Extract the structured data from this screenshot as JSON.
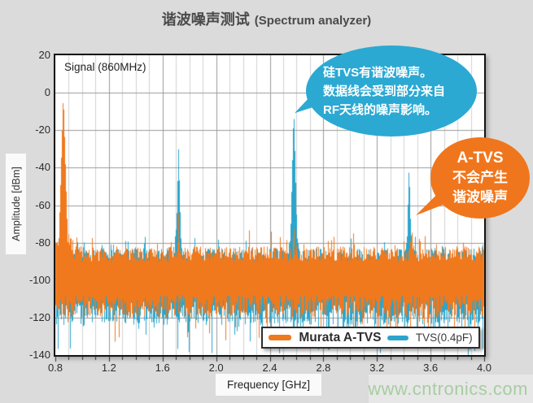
{
  "title": {
    "zh": "谐波噪声测试",
    "en": "(Spectrum analyzer)"
  },
  "signal_label": "Signal (860MHz)",
  "watermark": "www.cntronics.com",
  "axes": {
    "x": {
      "label": "Frequency [GHz]",
      "min": 0.8,
      "max": 4.0,
      "major_ticks": [
        "0.8",
        "1.2",
        "1.6",
        "2.0",
        "2.4",
        "2.8",
        "3.2",
        "3.6",
        "4.0"
      ],
      "minor_step_ghz": 0.1
    },
    "y": {
      "label": "Amplitude [dBm]",
      "min": -140,
      "max": 20,
      "ticks": [
        "20",
        "0",
        "-20",
        "-40",
        "-60",
        "-80",
        "-100",
        "-120",
        "-140"
      ]
    }
  },
  "legend": [
    {
      "name": "Murata A-TVS",
      "color": "#f0791e"
    },
    {
      "name": "TVS(0.4pF)",
      "color": "#2aa5cc"
    }
  ],
  "callouts": {
    "blue": {
      "color": "#2ba9d2",
      "lines": [
        "硅TVS有谐波噪声。",
        "数据线会受到部分来自",
        "RF天线的噪声影响。"
      ]
    },
    "orange": {
      "color": "#f0761d",
      "lines": [
        "A-TVS",
        "不会产生",
        "谐波噪声"
      ]
    }
  },
  "chart_data": {
    "type": "line",
    "subtype": "spectrum-trace",
    "title": "谐波噪声测试 (Spectrum analyzer)",
    "xlabel": "Frequency [GHz]",
    "ylabel": "Amplitude [dBm]",
    "x_range": [
      0.8,
      4.0
    ],
    "y_range": [
      -140,
      20
    ],
    "grid": {
      "x_minor_step": 0.1,
      "x_major_step": 0.4,
      "y_major_step": 20,
      "minor_color": "#d2d2d2",
      "major_color": "#9a9a9a"
    },
    "legend_position": "bottom-inside",
    "signal_ghz": 0.86,
    "seed": 20240817,
    "series": [
      {
        "name": "TVS(0.4pF)",
        "color": "#2aa5cc",
        "z": "behind",
        "noise_top_dbm": -83,
        "noise_top_var": 9,
        "noise_bottom_dbm": -111,
        "noise_bottom_var": 13,
        "deep_drop_dbm": -130,
        "peaks": [
          {
            "f_ghz": 0.86,
            "amp_dbm": -4,
            "spike_slope": 2600,
            "ped": -80,
            "ped_slope": 160
          },
          {
            "f_ghz": 1.72,
            "amp_dbm": -30,
            "spike_slope": 2800,
            "ped": -64,
            "ped_slope": 620
          },
          {
            "f_ghz": 2.58,
            "amp_dbm": -8,
            "spike_slope": 2800,
            "ped": -62,
            "ped_slope": 650
          },
          {
            "f_ghz": 3.44,
            "amp_dbm": -38,
            "spike_slope": 2800,
            "ped": -70,
            "ped_slope": 650
          }
        ]
      },
      {
        "name": "Murata A-TVS",
        "color": "#f0791e",
        "z": "front",
        "noise_top_dbm": -82,
        "noise_top_var": 8,
        "noise_bottom_dbm": -108,
        "noise_bottom_var": 12,
        "deep_drop_dbm": -126,
        "peaks": [
          {
            "f_ghz": 0.86,
            "amp_dbm": 0,
            "spike_slope": 2400,
            "ped": -74,
            "ped_slope": 120
          },
          {
            "f_ghz": 1.72,
            "amp_dbm": -64,
            "spike_slope": 2600,
            "ped": -81,
            "ped_slope": 650
          },
          {
            "f_ghz": 2.58,
            "amp_dbm": -67,
            "spike_slope": 2600,
            "ped": -82,
            "ped_slope": 700
          },
          {
            "f_ghz": 3.46,
            "amp_dbm": -70,
            "spike_slope": 1800,
            "ped": -79,
            "ped_slope": 420
          },
          {
            "f_ghz": 3.52,
            "amp_dbm": -72,
            "spike_slope": 2200
          },
          {
            "f_ghz": 3.56,
            "amp_dbm": -76,
            "spike_slope": 2400
          }
        ]
      }
    ],
    "annotations": [
      {
        "target": "TVS(0.4pF) harmonic peaks",
        "text": "硅TVS有谐波噪声。数据线会受到部分来自RF天线的噪声影响。"
      },
      {
        "target": "Murata A-TVS trace",
        "text": "A-TVS 不会产生谐波噪声"
      }
    ]
  }
}
